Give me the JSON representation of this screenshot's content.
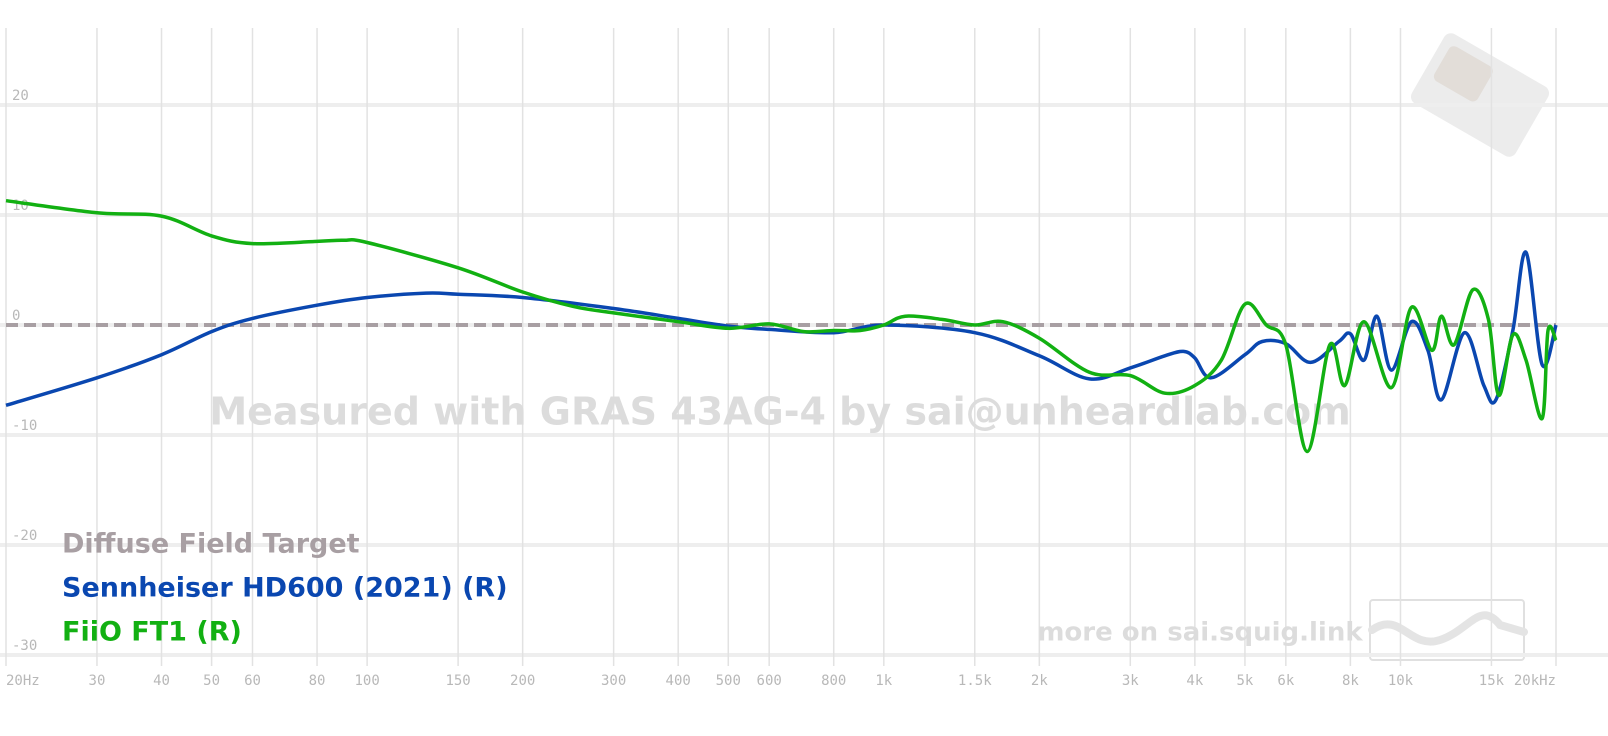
{
  "chart_data": {
    "type": "line",
    "watermark": "Measured with GRAS 43AG-4 by sai@unheardlab.com",
    "footer_link": "more on sai.squig.link",
    "log_x": true,
    "grid": true,
    "legend": "lower left",
    "xlim": [
      20,
      20000
    ],
    "ylim": [
      -31,
      27
    ],
    "xticks": [
      {
        "value": 20,
        "label": "20Hz"
      },
      30,
      40,
      50,
      60,
      80,
      100,
      150,
      200,
      300,
      400,
      500,
      600,
      800,
      {
        "value": 1000,
        "label": "1k"
      },
      {
        "value": 1500,
        "label": "1.5k"
      },
      {
        "value": 2000,
        "label": "2k"
      },
      {
        "value": 3000,
        "label": "3k"
      },
      {
        "value": 4000,
        "label": "4k"
      },
      {
        "value": 5000,
        "label": "5k"
      },
      {
        "value": 6000,
        "label": "6k"
      },
      {
        "value": 8000,
        "label": "8k"
      },
      {
        "value": 10000,
        "label": "10k"
      },
      {
        "value": 15000,
        "label": "15k"
      },
      {
        "value": 20000,
        "label": "20kHz"
      }
    ],
    "yticks": [
      20,
      10,
      0,
      -10,
      -20,
      -30
    ],
    "series": [
      {
        "name": "Diffuse Field Target",
        "color": "#a89fa3",
        "dashed": true,
        "x": [
          20,
          20000
        ],
        "values": [
          0,
          0
        ]
      },
      {
        "name": "Sennheiser HD600 (2021) (R)",
        "color": "#0a47b0",
        "x": [
          20,
          30,
          40,
          50,
          60,
          80,
          100,
          130,
          150,
          200,
          300,
          400,
          500,
          600,
          800,
          1000,
          1500,
          2000,
          2500,
          3000,
          3500,
          3800,
          4000,
          4300,
          5000,
          5400,
          6000,
          6700,
          7600,
          8000,
          8500,
          9000,
          9600,
          10500,
          11300,
          12000,
          13300,
          14500,
          15300,
          16500,
          17500,
          18800,
          20000
        ],
        "values": [
          -7.3,
          -4.8,
          -2.7,
          -0.6,
          0.6,
          1.8,
          2.5,
          2.9,
          2.8,
          2.5,
          1.5,
          0.6,
          -0.1,
          -0.4,
          -0.7,
          0,
          -0.7,
          -2.8,
          -4.9,
          -3.9,
          -2.8,
          -2.4,
          -3,
          -4.8,
          -2.7,
          -1.5,
          -1.7,
          -3.4,
          -1.5,
          -0.8,
          -3.2,
          0.8,
          -4.1,
          0.3,
          -2.3,
          -6.8,
          -0.7,
          -5.5,
          -6.8,
          -0.5,
          6.6,
          -3.6,
          0
        ]
      },
      {
        "name": "FiiO FT1 (R)",
        "color": "#12b012",
        "x": [
          20,
          30,
          40,
          50,
          60,
          80,
          90,
          100,
          150,
          200,
          250,
          300,
          400,
          500,
          600,
          700,
          800,
          900,
          1000,
          1100,
          1300,
          1500,
          1700,
          2000,
          2500,
          3000,
          3500,
          4000,
          4500,
          5000,
          5500,
          6000,
          6600,
          7300,
          7800,
          8500,
          9600,
          10500,
          11500,
          12000,
          12700,
          13800,
          14800,
          15500,
          16500,
          17500,
          18800,
          19300,
          20000
        ],
        "values": [
          11.3,
          10.2,
          9.9,
          8.1,
          7.4,
          7.6,
          7.7,
          7.5,
          5.2,
          3.0,
          1.7,
          1.1,
          0.3,
          -0.3,
          0.1,
          -0.6,
          -0.5,
          -0.5,
          0,
          0.8,
          0.5,
          0,
          0.3,
          -1.2,
          -4.3,
          -4.6,
          -6.2,
          -5.5,
          -3.2,
          1.9,
          0,
          -1.8,
          -11.5,
          -1.8,
          -5.5,
          0.3,
          -5.7,
          1.6,
          -2.3,
          0.8,
          -1.8,
          3.2,
          0.5,
          -6.4,
          -0.9,
          -3.2,
          -8.5,
          -0.5,
          -1.4
        ]
      }
    ]
  }
}
